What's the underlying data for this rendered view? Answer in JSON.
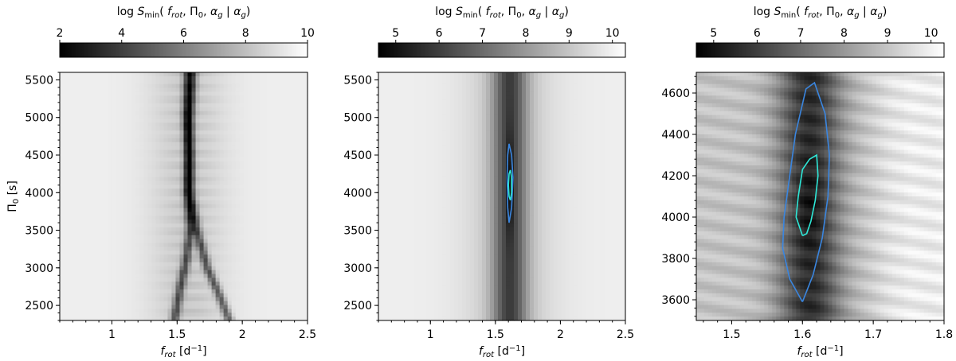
{
  "chart_data": [
    {
      "type": "heatmap",
      "colorbar": {
        "title": "log S_min(f_rot, Π_0, α_g | α_g)",
        "ticks": [
          2,
          4,
          6,
          8,
          10
        ],
        "range": [
          2,
          10
        ],
        "colormap": "gray (black = low, white = high)"
      },
      "xlabel": "f_rot [d⁻¹]",
      "ylabel": "Π₀ [s]",
      "xlim": [
        0.6,
        2.5
      ],
      "ylim": [
        2300,
        5600
      ],
      "xticks": [
        1.0,
        1.5,
        2.0,
        2.5
      ],
      "yticks": [
        2500,
        3000,
        3500,
        4000,
        4500,
        5000,
        5500
      ],
      "minimum_ridges": [
        {
          "name": "",
          "points": [
            [
              1.58,
              5600
            ],
            [
              1.57,
              5000
            ],
            [
              1.585,
              4500
            ],
            [
              1.58,
              4000
            ],
            [
              1.6,
              3500
            ],
            [
              1.57,
              3100
            ],
            [
              1.52,
              2700
            ],
            [
              1.48,
              2300
            ]
          ]
        },
        {
          "name": "",
          "points": [
            [
              1.62,
              5600
            ],
            [
              1.6,
              5000
            ],
            [
              1.6,
              4500
            ],
            [
              1.6,
              4000
            ],
            [
              1.65,
              3500
            ],
            [
              1.73,
              3000
            ],
            [
              1.82,
              2650
            ],
            [
              1.9,
              2300
            ]
          ]
        }
      ]
    },
    {
      "type": "heatmap",
      "colorbar": {
        "title": "log S_min(f_rot, Π_0, α_g | α_g)",
        "ticks": [
          5,
          6,
          7,
          8,
          9,
          10
        ],
        "range": [
          4.6,
          10.3
        ],
        "colormap": "gray (black = low, white = high)"
      },
      "xlabel": "f_rot [d⁻¹]",
      "ylabel": "",
      "xlim": [
        0.6,
        2.5
      ],
      "ylim": [
        2300,
        5600
      ],
      "xticks": [
        1.0,
        1.5,
        2.0,
        2.5
      ],
      "yticks": [
        2500,
        3000,
        3500,
        4000,
        4500,
        5000,
        5500
      ],
      "contours": [
        {
          "name": "",
          "color": "#3a86e0",
          "points": [
            [
              1.605,
              4650
            ],
            [
              1.625,
              4500
            ],
            [
              1.635,
              4200
            ],
            [
              1.625,
              3800
            ],
            [
              1.605,
              3600
            ],
            [
              1.595,
              3800
            ],
            [
              1.59,
              4200
            ],
            [
              1.595,
              4500
            ],
            [
              1.605,
              4650
            ]
          ]
        },
        {
          "name": "",
          "color": "#2ee8d8",
          "points": [
            [
              1.615,
              4300
            ],
            [
              1.625,
              4200
            ],
            [
              1.625,
              4000
            ],
            [
              1.615,
              3900
            ],
            [
              1.605,
              3950
            ],
            [
              1.6,
              4100
            ],
            [
              1.605,
              4250
            ],
            [
              1.615,
              4300
            ]
          ]
        }
      ]
    },
    {
      "type": "heatmap",
      "colorbar": {
        "title": "log S_min(f_rot, Π_0, α_g | α_g)",
        "ticks": [
          5,
          6,
          7,
          8,
          9,
          10
        ],
        "range": [
          4.6,
          10.3
        ],
        "colormap": "gray (black = low, white = high)"
      },
      "xlabel": "f_rot [d⁻¹]",
      "ylabel": "",
      "xlim": [
        1.45,
        1.8
      ],
      "ylim": [
        3500,
        4700
      ],
      "xticks": [
        1.5,
        1.6,
        1.7,
        1.8
      ],
      "yticks": [
        3600,
        3800,
        4000,
        4200,
        4400,
        4600
      ],
      "contours": [
        {
          "name": "",
          "color": "#3a86e0",
          "points": [
            [
              1.6,
              3590
            ],
            [
              1.582,
              3700
            ],
            [
              1.572,
              3850
            ],
            [
              1.574,
              4000
            ],
            [
              1.582,
              4200
            ],
            [
              1.59,
              4400
            ],
            [
              1.605,
              4620
            ],
            [
              1.617,
              4650
            ],
            [
              1.632,
              4500
            ],
            [
              1.638,
              4300
            ],
            [
              1.636,
              4100
            ],
            [
              1.628,
              3900
            ],
            [
              1.615,
              3720
            ],
            [
              1.6,
              3590
            ]
          ]
        },
        {
          "name": "",
          "color": "#2ee8d8",
          "points": [
            [
              1.6,
              3910
            ],
            [
              1.591,
              4000
            ],
            [
              1.594,
              4100
            ],
            [
              1.6,
              4230
            ],
            [
              1.61,
              4280
            ],
            [
              1.62,
              4300
            ],
            [
              1.622,
              4200
            ],
            [
              1.618,
              4080
            ],
            [
              1.612,
              3980
            ],
            [
              1.606,
              3920
            ],
            [
              1.6,
              3910
            ]
          ]
        }
      ]
    }
  ]
}
